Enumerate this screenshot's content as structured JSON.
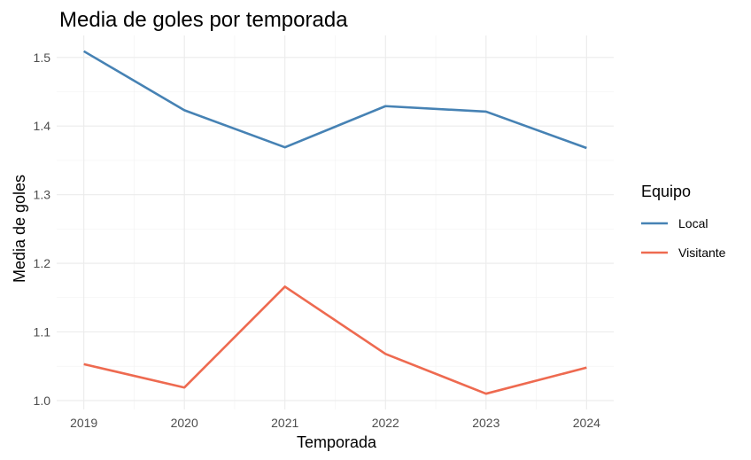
{
  "chart_data": {
    "type": "line",
    "title": "Media de goles por temporada",
    "xlabel": "Temporada",
    "ylabel": "Media de goles",
    "x": [
      2019,
      2020,
      2021,
      2022,
      2023,
      2024
    ],
    "x_ticks": [
      "2019",
      "2020",
      "2021",
      "2022",
      "2023",
      "2024"
    ],
    "y_ticks": [
      "1.0",
      "1.1",
      "1.2",
      "1.3",
      "1.4",
      "1.5"
    ],
    "ylim": [
      0.987,
      1.532
    ],
    "grid": true,
    "legend": {
      "title": "Equipo",
      "placement": "right"
    },
    "series": [
      {
        "name": "Local",
        "color": "#4682B4",
        "values": [
          1.509,
          1.423,
          1.369,
          1.429,
          1.421,
          1.368
        ]
      },
      {
        "name": "Visitante",
        "color": "#EE6A50",
        "values": [
          1.053,
          1.019,
          1.166,
          1.068,
          1.01,
          1.048
        ]
      }
    ]
  }
}
